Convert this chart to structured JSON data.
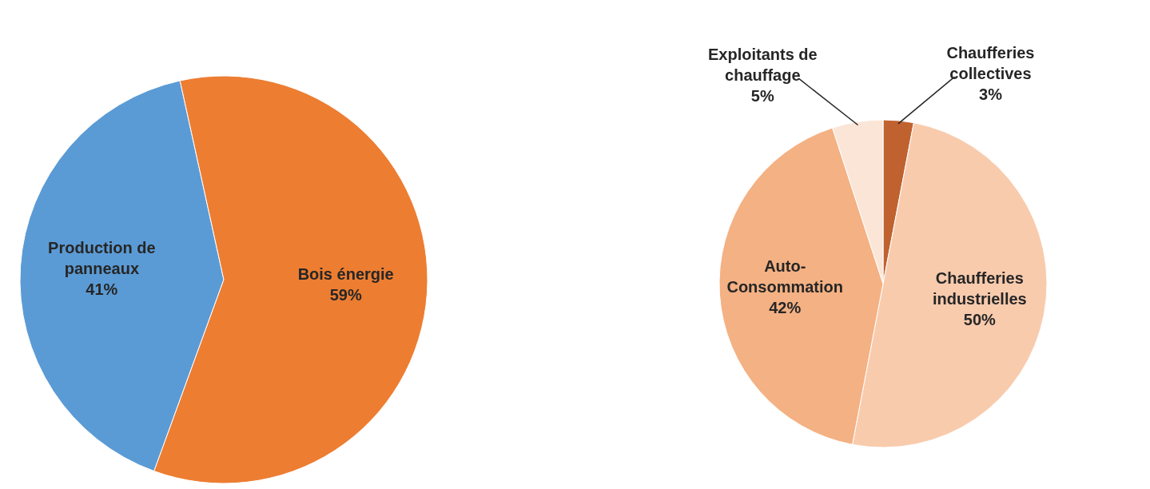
{
  "chart_data": [
    {
      "type": "pie",
      "categories": [
        "Production de panneaux",
        "Bois énergie"
      ],
      "values": [
        41,
        59
      ],
      "colors": [
        "#5b9bd5",
        "#ed7d31"
      ],
      "value_labels": [
        "41%",
        "59%"
      ]
    },
    {
      "type": "pie",
      "categories": [
        "Chaufferies collectives",
        "Chaufferies industrielles",
        "Auto-Consommation",
        "Exploitants de chauffage"
      ],
      "values": [
        3,
        50,
        42,
        5
      ],
      "colors": [
        "#c0622f",
        "#f8cbad",
        "#f4b183",
        "#fbe5d6"
      ],
      "value_labels": [
        "3%",
        "50%",
        "42%",
        "5%"
      ]
    }
  ]
}
